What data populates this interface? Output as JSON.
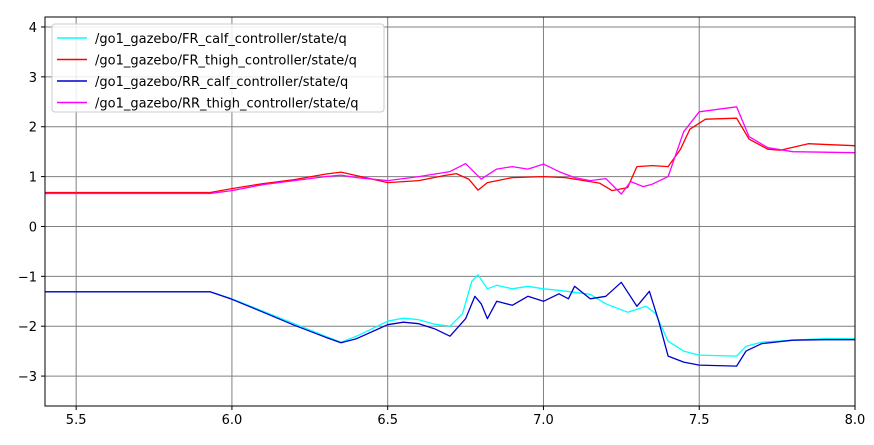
{
  "chart_data": {
    "type": "line",
    "xlim": [
      5.4,
      8.0
    ],
    "ylim": [
      -3.6,
      4.2
    ],
    "xticks": [
      5.5,
      6.0,
      6.5,
      7.0,
      7.5,
      8.0
    ],
    "xtick_labels": [
      "5.5",
      "6.0",
      "6.5",
      "7.0",
      "7.5",
      "8.0"
    ],
    "yticks": [
      -3,
      -2,
      -1,
      0,
      1,
      2,
      3,
      4
    ],
    "ytick_labels": [
      "−3",
      "−2",
      "−1",
      "0",
      "1",
      "2",
      "3",
      "4"
    ],
    "grid": true,
    "legend_position": "top-left",
    "series": [
      {
        "name": "/go1_gazebo/FR_calf_controller/state/q",
        "color": "#00ffff",
        "points": [
          [
            5.4,
            -1.31
          ],
          [
            5.93,
            -1.31
          ],
          [
            6.0,
            -1.45
          ],
          [
            6.1,
            -1.7
          ],
          [
            6.2,
            -1.95
          ],
          [
            6.3,
            -2.2
          ],
          [
            6.35,
            -2.32
          ],
          [
            6.4,
            -2.2
          ],
          [
            6.5,
            -1.9
          ],
          [
            6.55,
            -1.84
          ],
          [
            6.6,
            -1.87
          ],
          [
            6.65,
            -1.96
          ],
          [
            6.7,
            -2.0
          ],
          [
            6.74,
            -1.75
          ],
          [
            6.77,
            -1.1
          ],
          [
            6.79,
            -0.97
          ],
          [
            6.82,
            -1.25
          ],
          [
            6.85,
            -1.18
          ],
          [
            6.9,
            -1.25
          ],
          [
            6.95,
            -1.2
          ],
          [
            7.0,
            -1.25
          ],
          [
            7.05,
            -1.28
          ],
          [
            7.1,
            -1.32
          ],
          [
            7.15,
            -1.36
          ],
          [
            7.2,
            -1.55
          ],
          [
            7.27,
            -1.72
          ],
          [
            7.33,
            -1.6
          ],
          [
            7.36,
            -1.75
          ],
          [
            7.4,
            -2.3
          ],
          [
            7.45,
            -2.5
          ],
          [
            7.5,
            -2.58
          ],
          [
            7.62,
            -2.6
          ],
          [
            7.65,
            -2.4
          ],
          [
            7.7,
            -2.32
          ],
          [
            7.8,
            -2.28
          ],
          [
            7.9,
            -2.25
          ],
          [
            8.0,
            -2.25
          ]
        ]
      },
      {
        "name": "/go1_gazebo/FR_thigh_controller/state/q",
        "color": "#ff0000",
        "points": [
          [
            5.4,
            0.68
          ],
          [
            5.93,
            0.68
          ],
          [
            6.0,
            0.76
          ],
          [
            6.1,
            0.86
          ],
          [
            6.2,
            0.94
          ],
          [
            6.3,
            1.05
          ],
          [
            6.35,
            1.09
          ],
          [
            6.4,
            1.02
          ],
          [
            6.5,
            0.88
          ],
          [
            6.6,
            0.92
          ],
          [
            6.68,
            1.02
          ],
          [
            6.72,
            1.06
          ],
          [
            6.76,
            0.95
          ],
          [
            6.79,
            0.73
          ],
          [
            6.82,
            0.88
          ],
          [
            6.9,
            0.98
          ],
          [
            7.0,
            1.0
          ],
          [
            7.07,
            0.98
          ],
          [
            7.12,
            0.93
          ],
          [
            7.18,
            0.87
          ],
          [
            7.22,
            0.72
          ],
          [
            7.27,
            0.78
          ],
          [
            7.3,
            1.2
          ],
          [
            7.35,
            1.22
          ],
          [
            7.4,
            1.2
          ],
          [
            7.44,
            1.55
          ],
          [
            7.47,
            1.95
          ],
          [
            7.52,
            2.15
          ],
          [
            7.62,
            2.17
          ],
          [
            7.66,
            1.75
          ],
          [
            7.72,
            1.55
          ],
          [
            7.76,
            1.53
          ],
          [
            7.85,
            1.66
          ],
          [
            7.92,
            1.64
          ],
          [
            8.0,
            1.62
          ]
        ]
      },
      {
        "name": "/go1_gazebo/RR_calf_controller/state/q",
        "color": "#0000cc",
        "points": [
          [
            5.4,
            -1.31
          ],
          [
            5.93,
            -1.31
          ],
          [
            6.0,
            -1.46
          ],
          [
            6.1,
            -1.72
          ],
          [
            6.2,
            -1.98
          ],
          [
            6.3,
            -2.22
          ],
          [
            6.35,
            -2.33
          ],
          [
            6.4,
            -2.25
          ],
          [
            6.5,
            -1.97
          ],
          [
            6.55,
            -1.92
          ],
          [
            6.6,
            -1.95
          ],
          [
            6.65,
            -2.05
          ],
          [
            6.7,
            -2.2
          ],
          [
            6.75,
            -1.85
          ],
          [
            6.78,
            -1.4
          ],
          [
            6.8,
            -1.55
          ],
          [
            6.82,
            -1.85
          ],
          [
            6.85,
            -1.5
          ],
          [
            6.9,
            -1.58
          ],
          [
            6.95,
            -1.4
          ],
          [
            7.0,
            -1.5
          ],
          [
            7.05,
            -1.35
          ],
          [
            7.08,
            -1.45
          ],
          [
            7.1,
            -1.2
          ],
          [
            7.15,
            -1.45
          ],
          [
            7.2,
            -1.4
          ],
          [
            7.25,
            -1.12
          ],
          [
            7.3,
            -1.6
          ],
          [
            7.34,
            -1.3
          ],
          [
            7.37,
            -1.9
          ],
          [
            7.4,
            -2.6
          ],
          [
            7.45,
            -2.72
          ],
          [
            7.5,
            -2.78
          ],
          [
            7.62,
            -2.8
          ],
          [
            7.65,
            -2.5
          ],
          [
            7.7,
            -2.35
          ],
          [
            7.8,
            -2.28
          ],
          [
            7.9,
            -2.27
          ],
          [
            8.0,
            -2.27
          ]
        ]
      },
      {
        "name": "/go1_gazebo/RR_thigh_controller/state/q",
        "color": "#ff00ff",
        "points": [
          [
            5.4,
            0.66
          ],
          [
            5.93,
            0.66
          ],
          [
            6.0,
            0.72
          ],
          [
            6.1,
            0.84
          ],
          [
            6.2,
            0.92
          ],
          [
            6.3,
            1.0
          ],
          [
            6.35,
            1.03
          ],
          [
            6.4,
            0.98
          ],
          [
            6.5,
            0.92
          ],
          [
            6.6,
            1.0
          ],
          [
            6.7,
            1.1
          ],
          [
            6.75,
            1.26
          ],
          [
            6.8,
            0.95
          ],
          [
            6.85,
            1.15
          ],
          [
            6.9,
            1.2
          ],
          [
            6.95,
            1.15
          ],
          [
            7.0,
            1.25
          ],
          [
            7.05,
            1.1
          ],
          [
            7.1,
            0.98
          ],
          [
            7.15,
            0.92
          ],
          [
            7.2,
            0.96
          ],
          [
            7.25,
            0.65
          ],
          [
            7.28,
            0.9
          ],
          [
            7.32,
            0.8
          ],
          [
            7.35,
            0.85
          ],
          [
            7.4,
            1.0
          ],
          [
            7.45,
            1.9
          ],
          [
            7.5,
            2.3
          ],
          [
            7.62,
            2.4
          ],
          [
            7.66,
            1.8
          ],
          [
            7.72,
            1.58
          ],
          [
            7.8,
            1.5
          ],
          [
            8.0,
            1.48
          ]
        ]
      }
    ]
  }
}
